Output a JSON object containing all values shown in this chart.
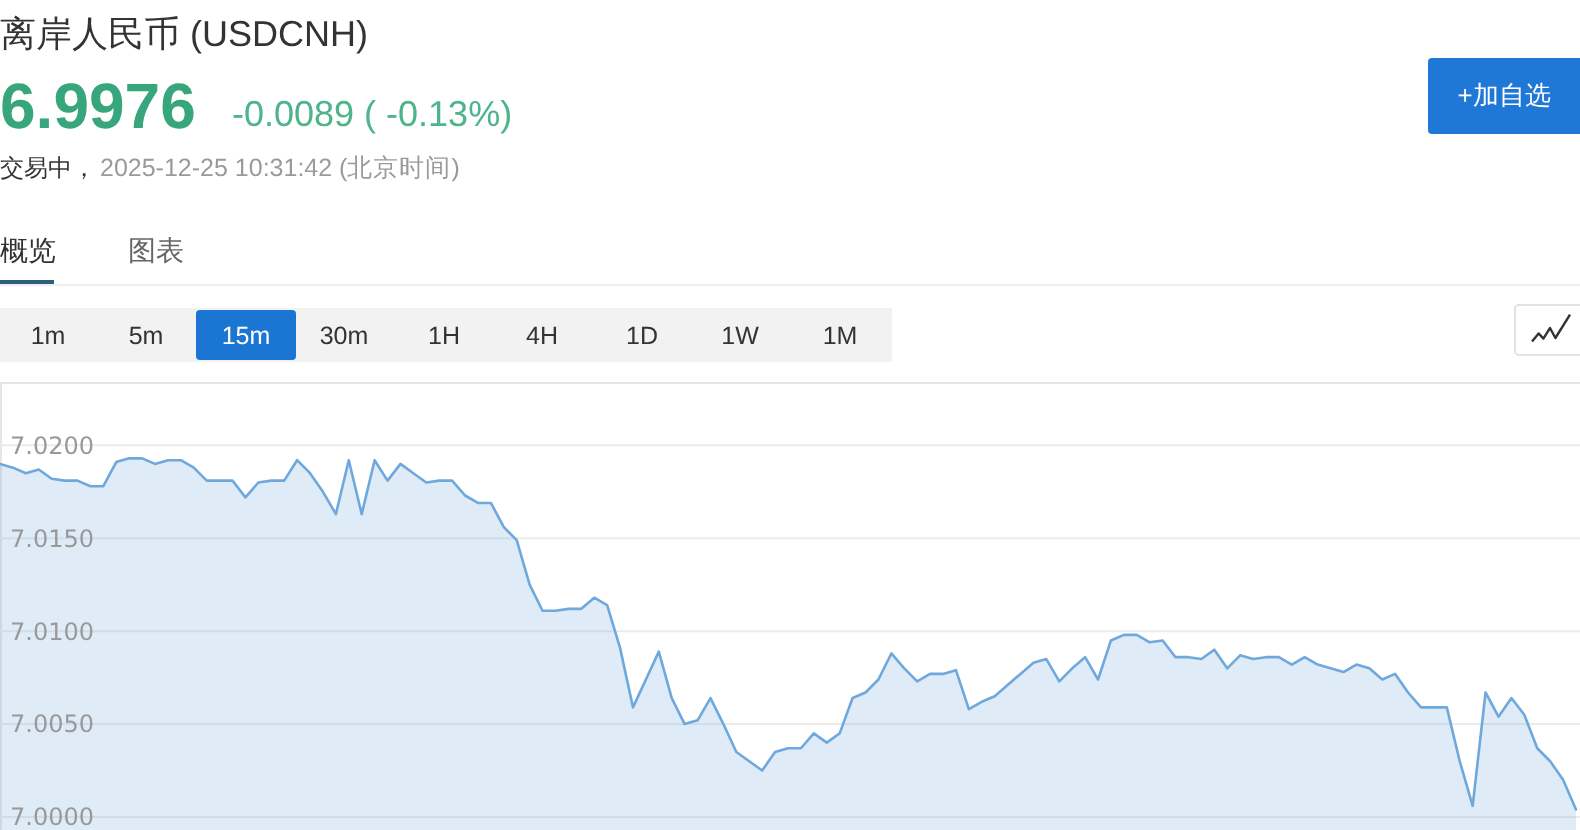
{
  "chart_data": {
    "type": "area",
    "title": "离岸人民币 (USDCNH)",
    "annotations": [
      "6.9976",
      "-0.0089 ( -0.13%)",
      "交易中，",
      "2025-12-25 10:31:42 (北京时间)",
      "+加自选",
      "概览",
      "图表",
      "1m",
      "5m",
      "15m",
      "30m",
      "1H",
      "4H",
      "1D",
      "1W",
      "1M"
    ],
    "categories": [
      null,
      null,
      null,
      null,
      null,
      null,
      null,
      null,
      null,
      null,
      null,
      null,
      null,
      null,
      null,
      null,
      null,
      null,
      null,
      null,
      null,
      null,
      null,
      null,
      null,
      null,
      null,
      null,
      null,
      null,
      null,
      null,
      null,
      null,
      null,
      null,
      null,
      null,
      null,
      null,
      null,
      null,
      null,
      null,
      null,
      null,
      null,
      null,
      null,
      null,
      null,
      null,
      null,
      null,
      null,
      null,
      null,
      null,
      null,
      null,
      null,
      null,
      null,
      null,
      null,
      null,
      null,
      null,
      null,
      null,
      null,
      null,
      null,
      null,
      null,
      null,
      null,
      null,
      null,
      null,
      null,
      null,
      null,
      null,
      null,
      null,
      null,
      null,
      null,
      null,
      null,
      null,
      null,
      null,
      null,
      null,
      null,
      null,
      null,
      null,
      null,
      null,
      null,
      null,
      null,
      null,
      null,
      null,
      null,
      null,
      null,
      null,
      null,
      null,
      null,
      null,
      null,
      null,
      null,
      null,
      null,
      null,
      null
    ],
    "series": [
      {
        "color": "#6fa8dc",
        "values": [
          7.019,
          7.0188,
          7.0185,
          7.0187,
          7.0182,
          7.0181,
          7.0181,
          7.0178,
          7.0178,
          7.0191,
          7.0193,
          7.0193,
          7.019,
          7.0192,
          7.0192,
          7.0188,
          7.0181,
          7.0181,
          7.0181,
          7.0172,
          7.018,
          7.0181,
          7.0181,
          7.0192,
          7.0185,
          7.0175,
          7.0163,
          7.0192,
          7.0163,
          7.0192,
          7.0181,
          7.019,
          7.0185,
          7.018,
          7.0181,
          7.0181,
          7.0173,
          7.0169,
          7.0169,
          7.0156,
          7.0149,
          7.0125,
          7.0111,
          7.0111,
          7.0112,
          7.0112,
          7.0118,
          7.0114,
          7.0091,
          7.0059,
          7.0074,
          7.0089,
          7.0064,
          7.005,
          7.0052,
          7.0064,
          7.005,
          7.0035,
          7.003,
          7.0025,
          7.0035,
          7.0037,
          7.0037,
          7.0045,
          7.004,
          7.0045,
          7.0064,
          7.0067,
          7.0074,
          7.0088,
          7.008,
          7.0073,
          7.0077,
          7.0077,
          7.0079,
          7.0058,
          7.0062,
          7.0065,
          7.0071,
          7.0077,
          7.0083,
          7.0085,
          7.0073,
          7.008,
          7.0086,
          7.0074,
          7.0095,
          7.0098,
          7.0098,
          7.0094,
          7.0095,
          7.0086,
          7.0086,
          7.0085,
          7.009,
          7.008,
          7.0087,
          7.0085,
          7.0086,
          7.0086,
          7.0082,
          7.0086,
          7.0082,
          7.008,
          7.0078,
          7.0082,
          7.008,
          7.0074,
          7.0077,
          7.0067,
          7.0059,
          7.0059,
          7.0059,
          7.003,
          7.0006,
          7.0067,
          7.0054,
          7.0064,
          7.0055,
          7.0037,
          7.003,
          7.002,
          7.0004
        ]
      }
    ],
    "ylim": [
      6.9993,
      7.0233
    ],
    "yticks": [
      {
        "value": 7.0,
        "label": "7.0000"
      },
      {
        "value": 7.005,
        "label": "7.0050"
      },
      {
        "value": 7.01,
        "label": "7.0100"
      },
      {
        "value": 7.015,
        "label": "7.0150"
      },
      {
        "value": 7.02,
        "label": "7.0200"
      }
    ],
    "grid": "y"
  }
}
